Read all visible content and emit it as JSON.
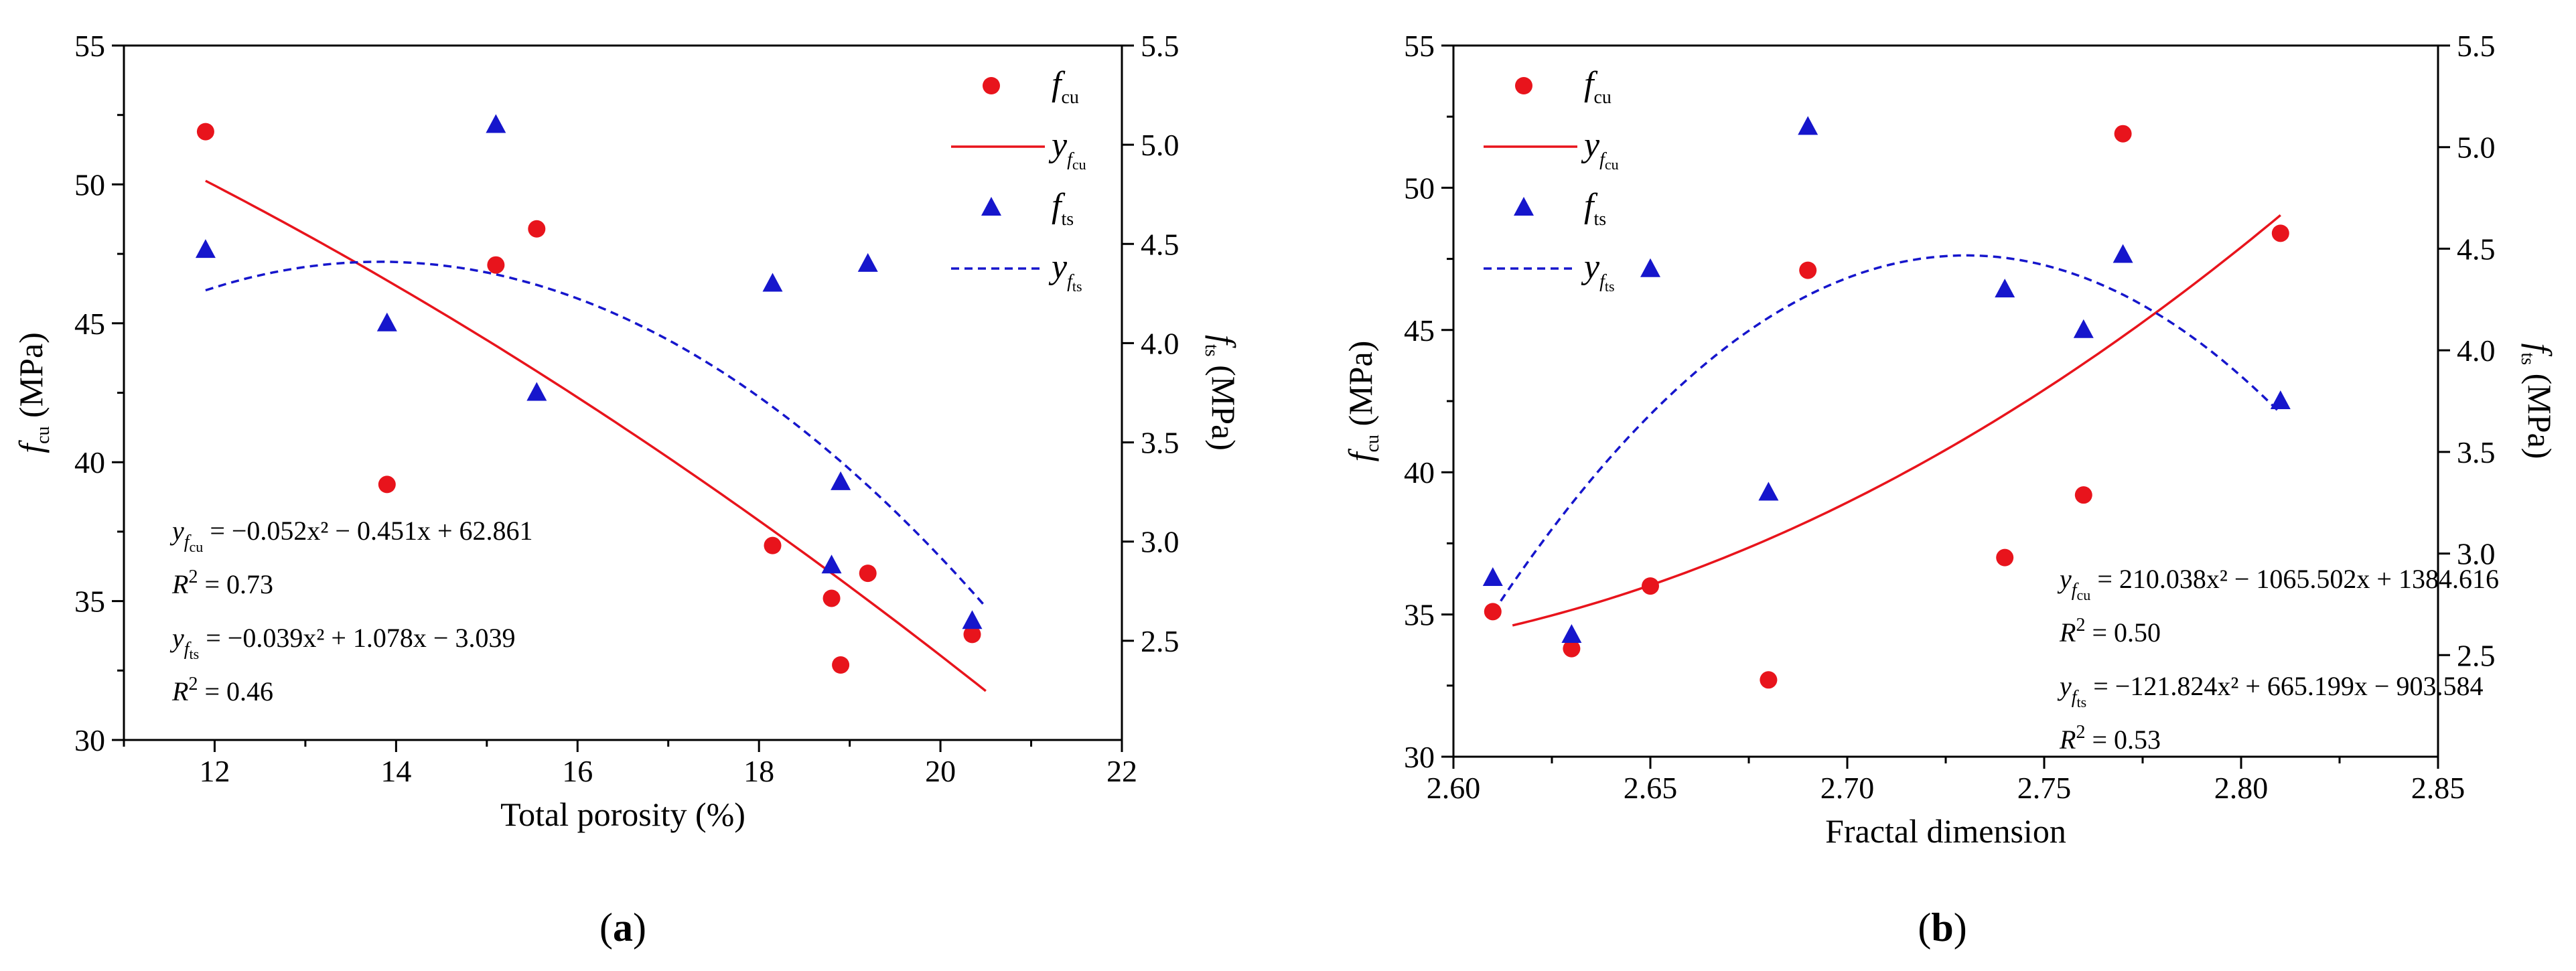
{
  "colors": {
    "fcu": "#e8141c",
    "fts": "#1616cc",
    "axis": "#000000"
  },
  "chart_data": [
    {
      "type": "scatter",
      "panel": "a",
      "xlabel": "Total porosity (%)",
      "ylabel_left": {
        "sym": "f",
        "sub": "cu",
        "unit": " (MPa)"
      },
      "ylabel_right": {
        "sym": "f",
        "sub": "ts",
        "unit": " (MPa)"
      },
      "xlim": [
        11,
        22
      ],
      "xticks": [
        12,
        14,
        16,
        18,
        20,
        22
      ],
      "ylim_left": [
        30,
        55
      ],
      "yticks_left": [
        30,
        35,
        40,
        45,
        50,
        55
      ],
      "ylim_right": [
        2.0,
        5.5
      ],
      "yticks_right": [
        "2.5",
        "3.0",
        "3.5",
        "4.0",
        "4.5",
        "5.0",
        "5.5"
      ],
      "series": [
        {
          "name": "fcu",
          "axis": "left",
          "marker": "circle",
          "x": [
            11.9,
            13.9,
            15.1,
            15.55,
            18.15,
            18.8,
            18.9,
            19.2,
            20.35
          ],
          "y": [
            51.9,
            39.2,
            47.1,
            48.4,
            37.0,
            35.1,
            32.7,
            36.0,
            33.8
          ]
        },
        {
          "name": "fts",
          "axis": "right",
          "marker": "triangle",
          "x": [
            11.9,
            13.9,
            15.1,
            15.55,
            18.15,
            18.8,
            18.9,
            19.2,
            20.35
          ],
          "y": [
            4.47,
            4.1,
            5.1,
            3.75,
            4.3,
            2.88,
            3.3,
            4.4,
            2.6
          ]
        },
        {
          "name": "y_fcu",
          "axis": "left",
          "line": "solid",
          "fit": {
            "a": -0.052,
            "b": -0.451,
            "c": 62.861
          },
          "x_range": [
            11.9,
            20.5
          ]
        },
        {
          "name": "y_fts",
          "axis": "right",
          "line": "dashed",
          "fit": {
            "a": -0.039,
            "b": 1.078,
            "c": -3.039
          },
          "x_range": [
            11.9,
            20.5
          ]
        }
      ],
      "legend": {
        "items": [
          {
            "sym": "f",
            "sub": "cu"
          },
          {
            "sym": "y",
            "sub": "f",
            "subsub": "cu"
          },
          {
            "sym": "f",
            "sub": "ts"
          },
          {
            "sym": "y",
            "sub": "f",
            "subsub": "ts"
          }
        ]
      },
      "annotations": [
        {
          "lhs": "y",
          "lsub": "f",
          "lsubsub": "cu",
          "rhs": "= −0.052x² − 0.451x + 62.861"
        },
        {
          "lhs": "R",
          "sup": "2",
          "rhs": " = 0.73"
        },
        {
          "lhs": "y",
          "lsub": "f",
          "lsubsub": "ts",
          "rhs": "= −0.039x² + 1.078x − 3.039"
        },
        {
          "lhs": "R",
          "sup": "2",
          "rhs": " = 0.46"
        }
      ],
      "caption": "(a)"
    },
    {
      "type": "scatter",
      "panel": "b",
      "xlabel": "Fractal dimension",
      "ylabel_left": {
        "sym": "f",
        "sub": "cu",
        "unit": " (MPa)"
      },
      "ylabel_right": {
        "sym": "f",
        "sub": "ts",
        "unit": " (MPa)"
      },
      "xlim": [
        2.6,
        2.85
      ],
      "xticks": [
        "2.60",
        "2.65",
        "2.70",
        "2.75",
        "2.80",
        "2.85"
      ],
      "ylim_left": [
        30,
        55
      ],
      "yticks_left": [
        30,
        35,
        40,
        45,
        50,
        55
      ],
      "ylim_right": [
        2.0,
        5.5
      ],
      "yticks_right": [
        "2.5",
        "3.0",
        "3.5",
        "4.0",
        "4.5",
        "5.0",
        "5.5"
      ],
      "series": [
        {
          "name": "fcu",
          "axis": "left",
          "marker": "circle",
          "x": [
            2.61,
            2.63,
            2.65,
            2.68,
            2.69,
            2.74,
            2.76,
            2.77,
            2.81
          ],
          "y": [
            35.1,
            33.8,
            36.0,
            32.7,
            47.1,
            37.0,
            39.2,
            51.9,
            48.4
          ]
        },
        {
          "name": "fts",
          "axis": "right",
          "marker": "triangle",
          "x": [
            2.61,
            2.63,
            2.65,
            2.68,
            2.69,
            2.74,
            2.76,
            2.77,
            2.81
          ],
          "y": [
            2.88,
            2.6,
            4.4,
            3.3,
            5.1,
            4.3,
            4.1,
            4.47,
            3.75
          ]
        },
        {
          "name": "y_fcu",
          "axis": "left",
          "line": "solid",
          "fit": {
            "a": 210.038,
            "b": -1065.502,
            "c": 1384.616
          },
          "x_range": [
            2.615,
            2.81
          ]
        },
        {
          "name": "y_fts",
          "axis": "right",
          "line": "dashed",
          "fit": {
            "a": -121.824,
            "b": 665.199,
            "c": -903.584
          },
          "x_range": [
            2.612,
            2.81
          ]
        }
      ],
      "legend": {
        "items": [
          {
            "sym": "f",
            "sub": "cu"
          },
          {
            "sym": "y",
            "sub": "f",
            "subsub": "cu"
          },
          {
            "sym": "f",
            "sub": "ts"
          },
          {
            "sym": "y",
            "sub": "f",
            "subsub": "ts"
          }
        ]
      },
      "annotations": [
        {
          "lhs": "y",
          "lsub": "f",
          "lsubsub": "cu",
          "rhs": "= 210.038x² − 1065.502x + 1384.616"
        },
        {
          "lhs": "R",
          "sup": "2",
          "rhs": " = 0.50"
        },
        {
          "lhs": "y",
          "lsub": "f",
          "lsubsub": "ts",
          "rhs": "= −121.824x² + 665.199x − 903.584"
        },
        {
          "lhs": "R",
          "sup": "2",
          "rhs": " = 0.53"
        }
      ],
      "caption": "(b)"
    }
  ]
}
